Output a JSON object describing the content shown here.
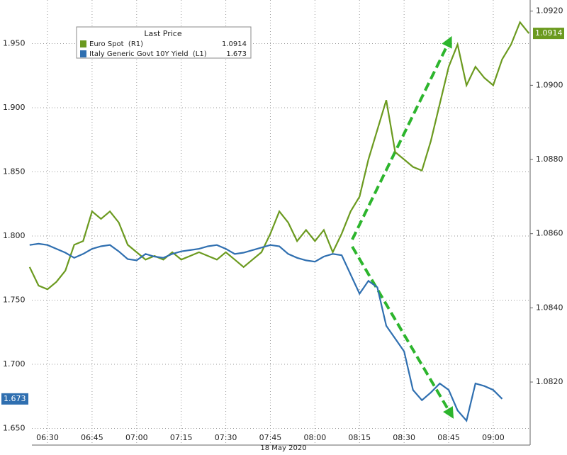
{
  "chart_data": {
    "type": "line",
    "legend_title": "Last Price",
    "xlabel": "18 May 2020",
    "categories": [
      null,
      null,
      "06:30",
      null,
      null,
      null,
      null,
      "06:45",
      null,
      null,
      null,
      null,
      "07:00",
      null,
      null,
      null,
      null,
      "07:15",
      null,
      null,
      null,
      null,
      "07:30",
      null,
      null,
      null,
      null,
      "07:45",
      null,
      null,
      null,
      null,
      "08:00",
      null,
      null,
      null,
      null,
      "08:15",
      null,
      null,
      null,
      null,
      "08:30",
      null,
      null,
      null,
      null,
      "08:45",
      null,
      null,
      null,
      null,
      "09:00",
      null,
      null,
      null,
      null
    ],
    "series": [
      {
        "name": "Euro Spot  (R1)",
        "last_value_label": "1.0914",
        "color": "#6b9a1f",
        "axis": "y2",
        "values": [
          1.0851,
          1.0846,
          1.0845,
          1.0847,
          1.085,
          1.0857,
          1.0858,
          1.0866,
          1.0864,
          1.0866,
          1.0863,
          1.0857,
          1.0855,
          1.0853,
          1.0854,
          1.0853,
          1.0855,
          1.0853,
          1.0854,
          1.0855,
          1.0854,
          1.0853,
          1.0855,
          1.0853,
          1.0851,
          1.0853,
          1.0855,
          1.086,
          1.0866,
          1.0863,
          1.0858,
          1.0861,
          1.0858,
          1.0861,
          1.0855,
          1.086,
          1.0866,
          1.087,
          1.088,
          1.0888,
          1.0896,
          1.0882,
          1.088,
          1.0878,
          1.0877,
          1.0885,
          1.0895,
          1.0905,
          1.0911,
          1.09,
          1.0905,
          1.0902,
          1.09,
          1.0907,
          1.0911,
          1.0917,
          1.0914
        ]
      },
      {
        "name": "Italy Generic Govt 10Y Yield  (L1)",
        "last_value_label": "1.673",
        "color": "#2f6fb0",
        "values": [
          1.793,
          1.794,
          1.793,
          1.79,
          1.787,
          1.783,
          1.786,
          1.79,
          1.792,
          1.793,
          1.788,
          1.782,
          1.781,
          1.786,
          1.784,
          1.783,
          1.786,
          1.788,
          1.789,
          1.79,
          1.792,
          1.793,
          1.79,
          1.786,
          1.787,
          1.789,
          1.791,
          1.793,
          1.792,
          1.786,
          1.783,
          1.781,
          1.78,
          1.784,
          1.786,
          1.785,
          1.77,
          1.755,
          1.765,
          1.76,
          1.73,
          1.72,
          1.71,
          1.68,
          1.672,
          1.678,
          1.685,
          1.68,
          1.664,
          1.656,
          1.685,
          1.683,
          1.68,
          1.673,
          null,
          null,
          null
        ]
      }
    ],
    "ylim": [
      1.637,
      1.984
    ],
    "yticks": [
      {
        "value": 1.65,
        "label": "1.650"
      },
      {
        "value": 1.7,
        "label": "1.700"
      },
      {
        "value": 1.75,
        "label": "1.750"
      },
      {
        "value": 1.8,
        "label": "1.800"
      },
      {
        "value": 1.85,
        "label": "1.850"
      },
      {
        "value": 1.9,
        "label": "1.900"
      },
      {
        "value": 1.95,
        "label": "1.950"
      }
    ],
    "y2lim": [
      1.0803,
      1.0923
    ],
    "y2ticks": [
      {
        "value": 1.082,
        "label": "1.0820"
      },
      {
        "value": 1.084,
        "label": "1.0840"
      },
      {
        "value": 1.086,
        "label": "1.0860"
      },
      {
        "value": 1.088,
        "label": "1.0880"
      },
      {
        "value": 1.09,
        "label": "1.0900"
      },
      {
        "value": 1.092,
        "label": "1.0920"
      }
    ],
    "grid": true
  }
}
